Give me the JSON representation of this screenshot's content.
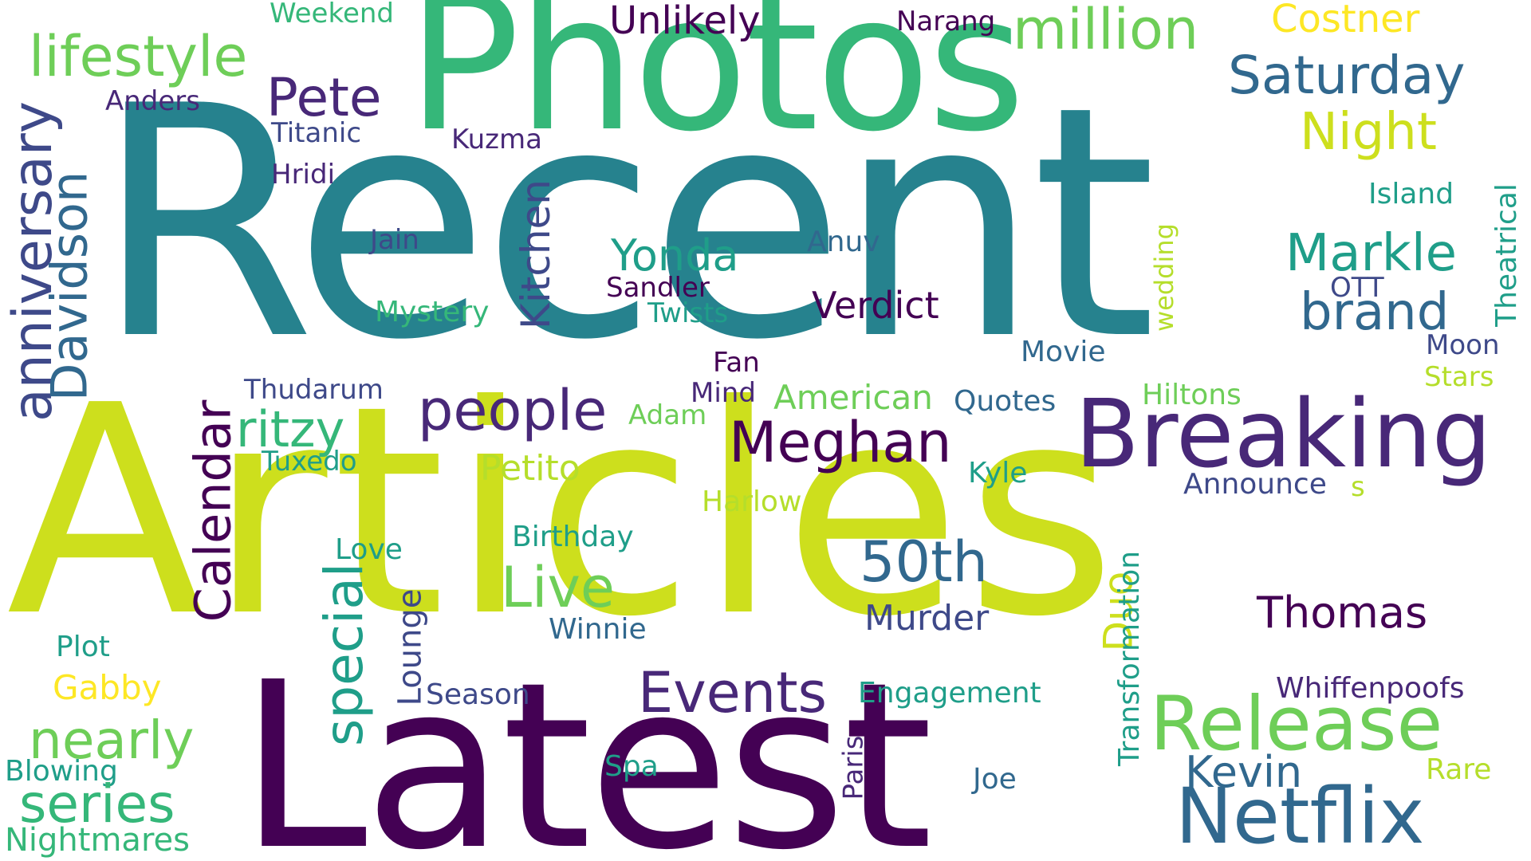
{
  "words": {
    "recent": "Recent",
    "articles": "Articles",
    "latest": "Latest",
    "photos": "Photos",
    "breaking": "Breaking",
    "netflix": "Netflix",
    "release": "Release",
    "million": "million",
    "saturday": "Saturday",
    "night": "Night",
    "lifestyle": "lifestyle",
    "anniversary": "anniversary",
    "davidson": "Davidson",
    "pete": "Pete",
    "unlikely": "Unlikely",
    "costner": "Costner",
    "weekend": "Weekend",
    "narang": "Narang",
    "anders": "Anders",
    "titanic": "Titanic",
    "hridi": "Hridi",
    "kuzma": "Kuzma",
    "kitchen": "Kitchen",
    "jain": "Jain",
    "yonda": "Yonda",
    "anuv": "Anuv",
    "markle": "Markle",
    "brand": "brand",
    "island": "Island",
    "theatrical": "Theatrical",
    "wedding": "wedding",
    "ott": "OTT",
    "moon": "Moon",
    "stars": "Stars",
    "sandler": "Sandler",
    "twists": "Twists",
    "mystery": "Mystery",
    "verdict": "Verdict",
    "movie": "Movie",
    "fan": "Fan",
    "mind": "Mind",
    "adam": "Adam",
    "american": "American",
    "quotes": "Quotes",
    "hiltons": "Hiltons",
    "thudarum": "Thudarum",
    "calendar": "Calendar",
    "ritzy": "ritzy",
    "people": "people",
    "meghan": "Meghan",
    "tuxedo": "Tuxedo",
    "petito": "Petito",
    "kyle": "Kyle",
    "announce": "Announce",
    "s": "s",
    "harlow": "Harlow",
    "birthday": "Birthday",
    "love": "Love",
    "fiftieth": "50th",
    "live": "Live",
    "special": "special",
    "lounge": "Lounge",
    "winnie": "Winnie",
    "duo": "Duo",
    "murder": "Murder",
    "transformation": "Transformation",
    "thomas": "Thomas",
    "plot": "Plot",
    "gabby": "Gabby",
    "season": "Season",
    "events": "Events",
    "engagement": "Engagement",
    "whiffenpoofs": "Whiffenpoofs",
    "nearly": "nearly",
    "blowing": "Blowing",
    "spa": "Spa",
    "paris": "Paris",
    "joe": "Joe",
    "kevin": "Kevin",
    "rare": "Rare",
    "series": "series",
    "nightmares": "Nightmares"
  }
}
